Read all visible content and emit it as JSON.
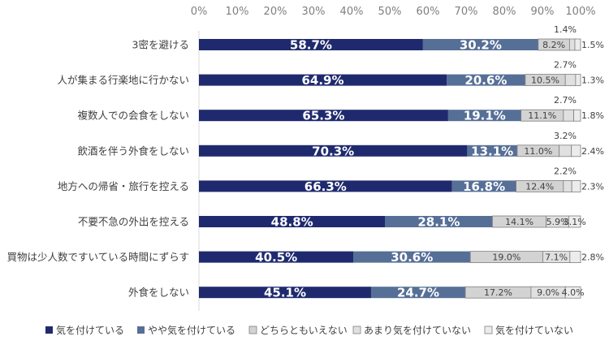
{
  "chart_data": {
    "type": "bar",
    "orientation": "horizontal",
    "stacked": true,
    "xlim": [
      0,
      100
    ],
    "x_ticks": [
      "0%",
      "10%",
      "20%",
      "30%",
      "40%",
      "50%",
      "60%",
      "70%",
      "80%",
      "90%",
      "100%"
    ],
    "x_tick_values": [
      0,
      10,
      20,
      30,
      40,
      50,
      60,
      70,
      80,
      90,
      100
    ],
    "x_axis_position": "top",
    "grid": false,
    "legend_position": "bottom",
    "categories": [
      "3密を避ける",
      "人が集まる行楽地に行かない",
      "複数人での会食をしない",
      "飲酒を伴う外食をしない",
      "地方への帰省・旅行を控える",
      "不要不急の外出を控える",
      "買物は少人数ですいている時間にずらす",
      "外食をしない"
    ],
    "series": [
      {
        "name": "気を付けている",
        "color": "#1f2a6e",
        "values": [
          58.7,
          64.9,
          65.3,
          70.3,
          66.3,
          48.8,
          40.5,
          45.1
        ],
        "labels": [
          "58.7%",
          "64.9%",
          "65.3%",
          "70.3%",
          "66.3%",
          "48.8%",
          "40.5%",
          "45.1%"
        ]
      },
      {
        "name": "やや気を付けている",
        "color": "#566f97",
        "values": [
          30.2,
          20.6,
          19.1,
          13.1,
          16.8,
          28.1,
          30.6,
          24.7
        ],
        "labels": [
          "30.2%",
          "20.6%",
          "19.1%",
          "13.1%",
          "16.8%",
          "28.1%",
          "30.6%",
          "24.7%"
        ]
      },
      {
        "name": "どちらともいえない",
        "color": "#d3d3d3",
        "values": [
          8.2,
          10.5,
          11.1,
          11.0,
          12.4,
          14.1,
          19.0,
          17.2
        ],
        "labels": [
          "8.2%",
          "10.5%",
          "11.1%",
          "11.0%",
          "12.4%",
          "14.1%",
          "19.0%",
          "17.2%"
        ]
      },
      {
        "name": "あまり気を付けていない",
        "color": "#e0e0e0",
        "values": [
          1.4,
          2.7,
          2.7,
          3.2,
          2.2,
          5.9,
          7.1,
          9.0
        ],
        "labels": [
          "1.4%",
          "2.7%",
          "2.7%",
          "3.2%",
          "2.2%",
          "5.9%",
          "7.1%",
          "9.0%"
        ]
      },
      {
        "name": "気を付けていない",
        "color": "#ececec",
        "values": [
          1.5,
          1.3,
          1.8,
          2.4,
          2.3,
          3.1,
          2.8,
          4.0
        ],
        "labels": [
          "1.5%",
          "1.3%",
          "1.8%",
          "2.4%",
          "2.3%",
          "3.1%",
          "2.8%",
          "4.0%"
        ]
      }
    ]
  }
}
